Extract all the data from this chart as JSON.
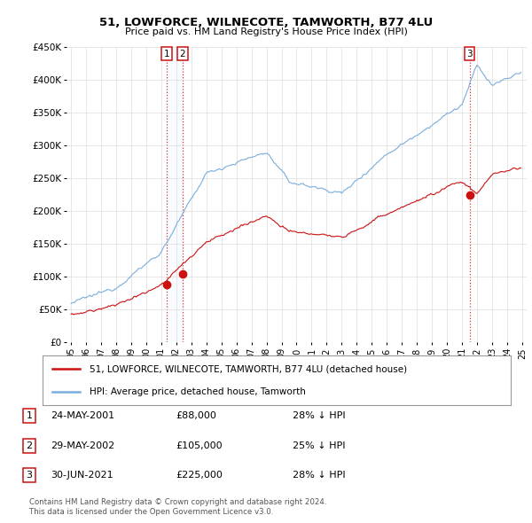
{
  "title": "51, LOWFORCE, WILNECOTE, TAMWORTH, B77 4LU",
  "subtitle": "Price paid vs. HM Land Registry's House Price Index (HPI)",
  "ylim": [
    0,
    450000
  ],
  "hpi_color": "#7aaddc",
  "price_color": "#cc1111",
  "background_color": "#ffffff",
  "grid_color": "#dddddd",
  "shade_color": "#ddeeff",
  "transactions": [
    {
      "label": "1",
      "x": 2001.37
    },
    {
      "label": "2",
      "x": 2002.41
    },
    {
      "label": "3",
      "x": 2021.5
    }
  ],
  "legend_line1": "51, LOWFORCE, WILNECOTE, TAMWORTH, B77 4LU (detached house)",
  "legend_line2": "HPI: Average price, detached house, Tamworth",
  "table_rows": [
    {
      "num": "1",
      "date": "24-MAY-2001",
      "price": "£88,000",
      "pct": "28% ↓ HPI"
    },
    {
      "num": "2",
      "date": "29-MAY-2002",
      "price": "£105,000",
      "pct": "25% ↓ HPI"
    },
    {
      "num": "3",
      "date": "30-JUN-2021",
      "price": "£225,000",
      "pct": "28% ↓ HPI"
    }
  ],
  "footer_line1": "Contains HM Land Registry data © Crown copyright and database right 2024.",
  "footer_line2": "This data is licensed under the Open Government Licence v3.0.",
  "tr1_price": 88000,
  "tr2_price": 105000,
  "tr3_price": 225000
}
